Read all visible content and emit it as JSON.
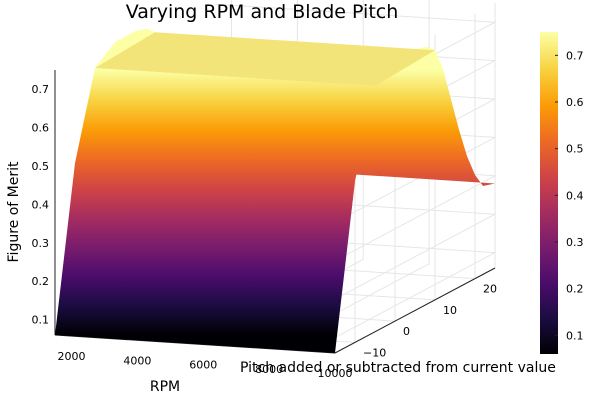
{
  "chart_data": {
    "type": "surface",
    "title": "Varying RPM and Blade Pitch",
    "xlabel": "RPM",
    "ylabel": "Pitch added or subtracted from current value",
    "zlabel": "Figure of Merit",
    "x_ticks": [
      "2000",
      "4000",
      "6000",
      "8000",
      "10000"
    ],
    "y_ticks": [
      "−10",
      "0",
      "10",
      "20"
    ],
    "z_ticks": [
      "0.1",
      "0.2",
      "0.3",
      "0.4",
      "0.5",
      "0.6",
      "0.7"
    ],
    "x_range": [
      1500,
      10000
    ],
    "y_range": [
      -15,
      25
    ],
    "z_range": [
      0.06,
      0.75
    ],
    "grid": true,
    "colorbar": {
      "colormap": "inferno",
      "range": [
        0.06,
        0.75
      ],
      "ticks": [
        "0.1",
        "0.2",
        "0.3",
        "0.4",
        "0.5",
        "0.6",
        "0.7"
      ]
    },
    "surface_profile_along_pitch": {
      "pitch": [
        -15,
        -10,
        -5,
        0,
        5,
        8,
        10,
        12,
        14,
        16,
        18,
        20,
        22,
        25
      ],
      "figure_of_merit": [
        0.06,
        0.48,
        0.7,
        0.74,
        0.74,
        0.73,
        0.71,
        0.65,
        0.56,
        0.47,
        0.39,
        0.33,
        0.29,
        0.28
      ]
    },
    "colors": {
      "inferno_stops": [
        "#000004",
        "#1b0c41",
        "#4a0c6b",
        "#781c6d",
        "#a52c60",
        "#cf4446",
        "#ed6925",
        "#fb9b06",
        "#f7d13d",
        "#fcffa4"
      ]
    }
  }
}
